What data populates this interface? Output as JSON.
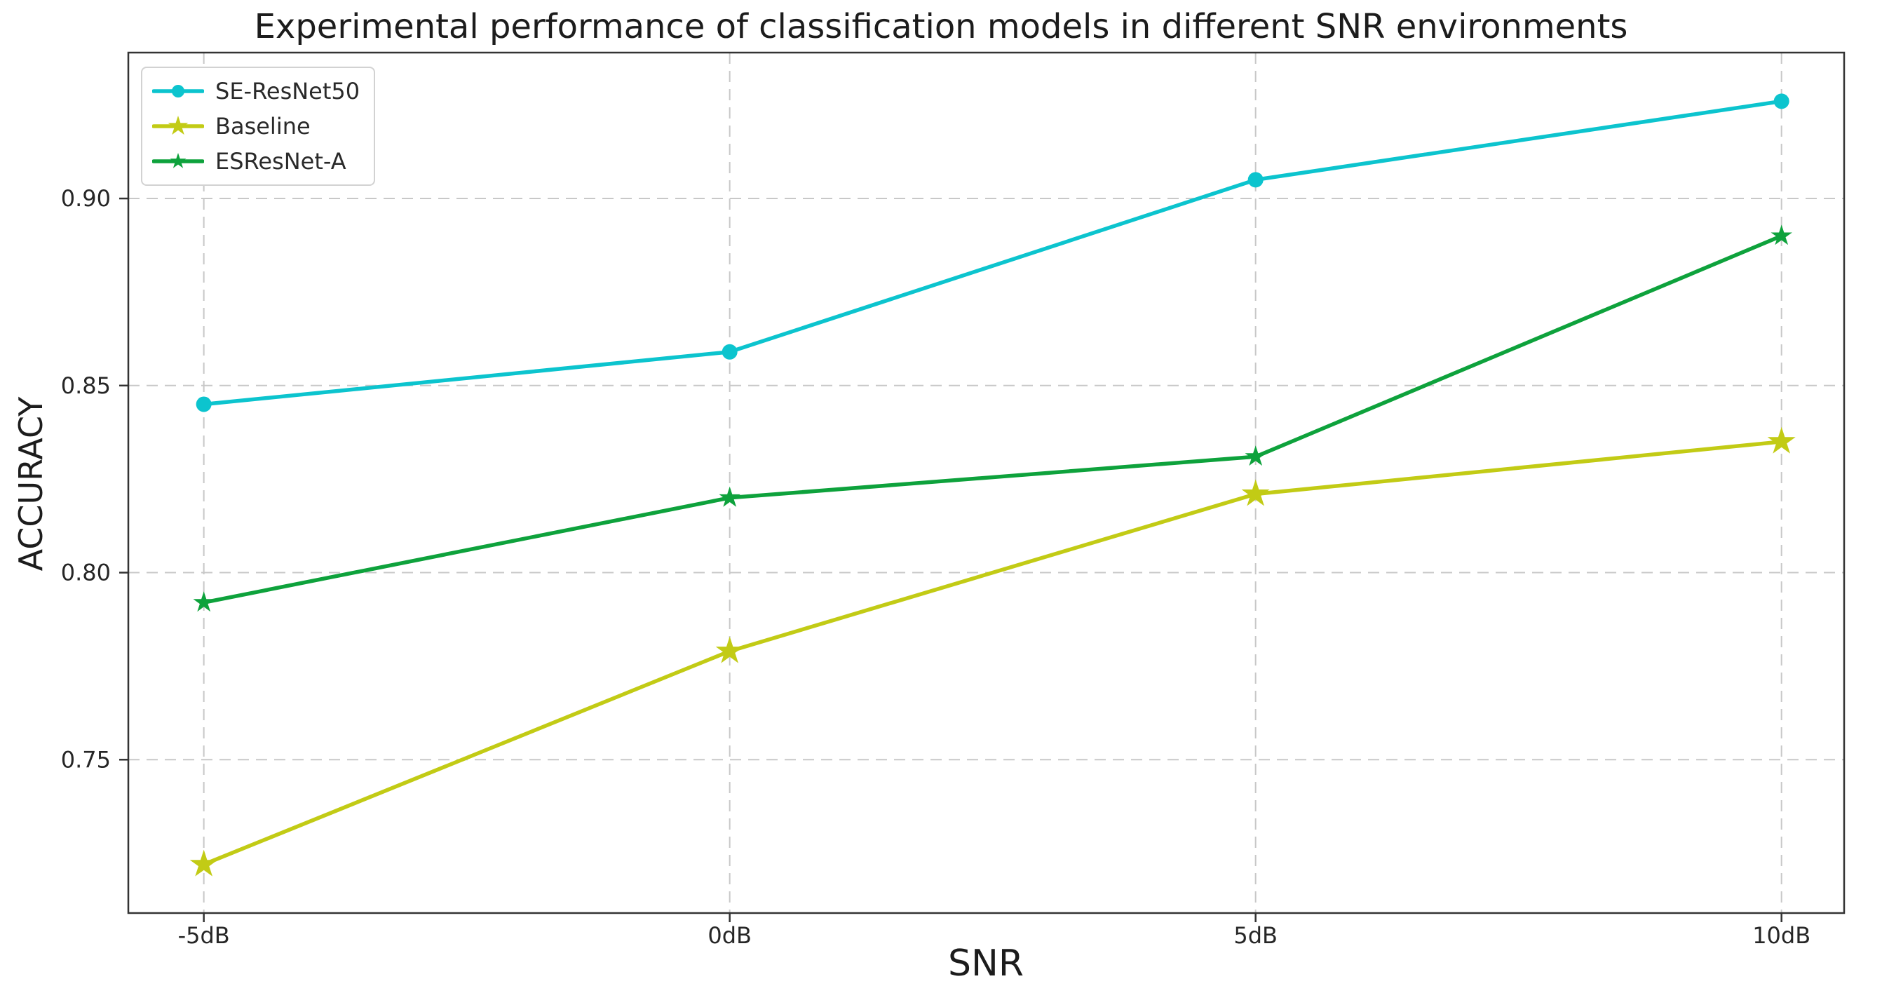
{
  "chart_data": {
    "type": "line",
    "title": "Experimental performance of classification models in different SNR environments",
    "xlabel": "SNR",
    "ylabel": "ACCURACY",
    "categories": [
      "-5dB",
      "0dB",
      "5dB",
      "10dB"
    ],
    "series": [
      {
        "name": "SE-ResNet50",
        "color": "#0cc4ce",
        "marker": "circle",
        "values": [
          0.845,
          0.859,
          0.905,
          0.926
        ]
      },
      {
        "name": "Baseline",
        "color": "#c2cb15",
        "marker": "star",
        "values": [
          0.722,
          0.779,
          0.821,
          0.835
        ]
      },
      {
        "name": "ESResNet-A",
        "color": "#0ea23c",
        "marker": "star",
        "values": [
          0.792,
          0.82,
          0.831,
          0.89
        ]
      }
    ],
    "ytick_labels": [
      "0.75",
      "0.80",
      "0.85",
      "0.90"
    ],
    "ylim": [
      0.709,
      0.939
    ],
    "grid": true,
    "grid_style": "dashed",
    "legend_position": "upper left",
    "axis_colors": {
      "spine": "#333333",
      "grid": "#c8c8c8",
      "tick_text": "#262626"
    }
  }
}
